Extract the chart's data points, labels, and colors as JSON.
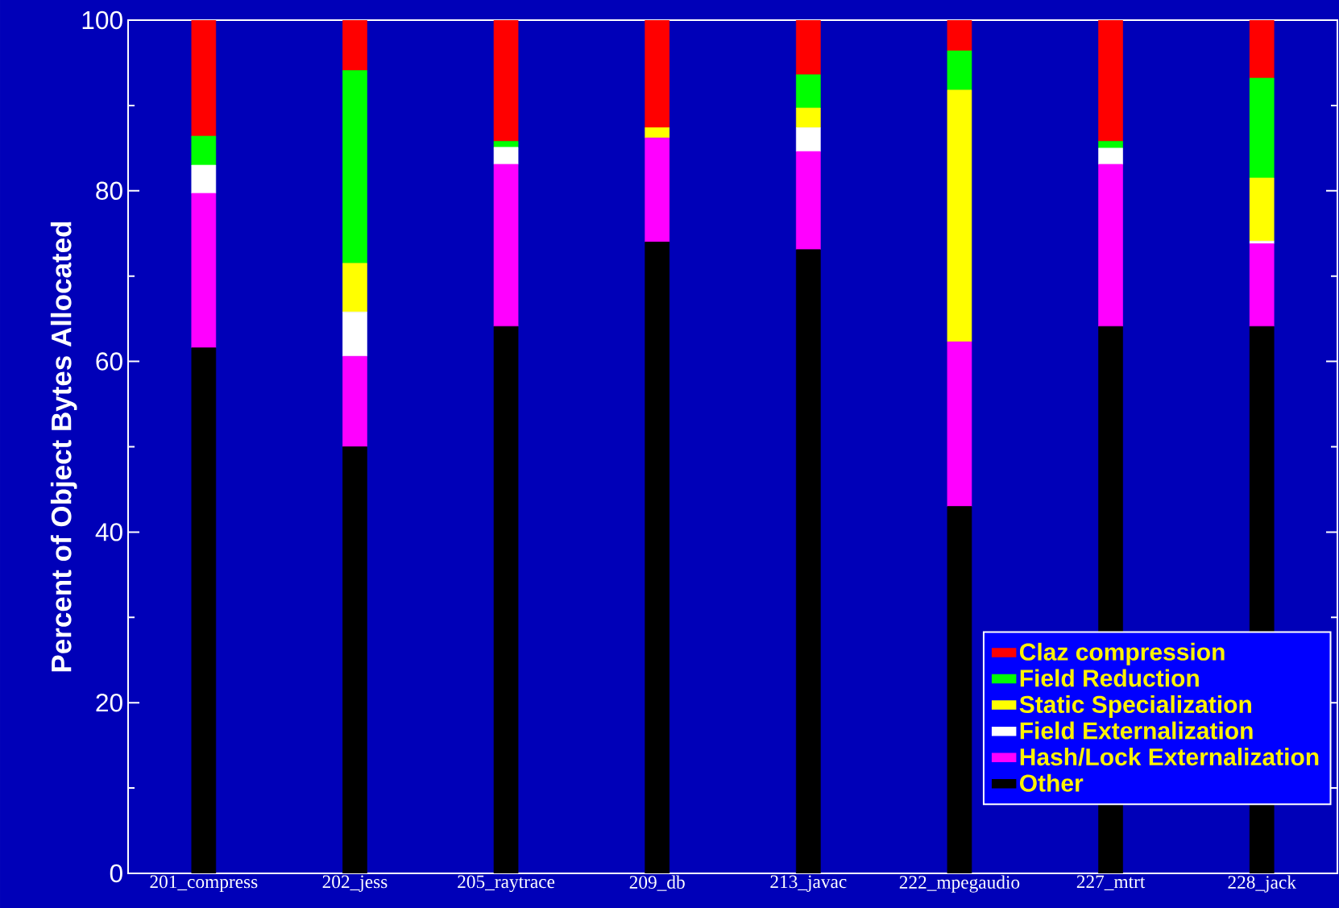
{
  "chart_data": {
    "type": "bar",
    "stacked": true,
    "ylabel": "Percent of Object Bytes Allocated",
    "categories": [
      "201_compress",
      "202_jess",
      "205_raytrace",
      "209_db",
      "213_javac",
      "222_mpegaudio",
      "227_mtrt",
      "228_jack"
    ],
    "series": [
      {
        "name": "Other",
        "color": "#000000",
        "values": [
          61.6,
          50.0,
          64.1,
          74.0,
          73.1,
          43.0,
          64.1,
          64.1
        ]
      },
      {
        "name": "Hash/Lock Externalization",
        "color": "#ff00ff",
        "values": [
          18.1,
          10.6,
          19.0,
          12.2,
          11.5,
          19.3,
          19.0,
          9.7
        ]
      },
      {
        "name": "Field Externalization",
        "color": "#ffffff",
        "values": [
          3.3,
          5.2,
          2.0,
          0,
          2.8,
          0,
          1.9,
          0.3
        ]
      },
      {
        "name": "Static Specialization",
        "color": "#ffff00",
        "values": [
          0,
          5.7,
          0,
          1.2,
          2.3,
          29.5,
          0,
          7.4
        ]
      },
      {
        "name": "Field Reduction",
        "color": "#00ff00",
        "values": [
          3.4,
          22.6,
          0.7,
          0,
          3.9,
          4.6,
          0.8,
          11.7
        ]
      },
      {
        "name": "Claz compression",
        "color": "#ff0000",
        "values": [
          13.6,
          5.9,
          14.2,
          12.6,
          6.4,
          3.6,
          14.2,
          6.8
        ]
      }
    ],
    "ylim": [
      0,
      100
    ],
    "yticks": [
      0,
      20,
      40,
      60,
      80,
      100
    ],
    "grid": false,
    "legend": "bottom right"
  }
}
